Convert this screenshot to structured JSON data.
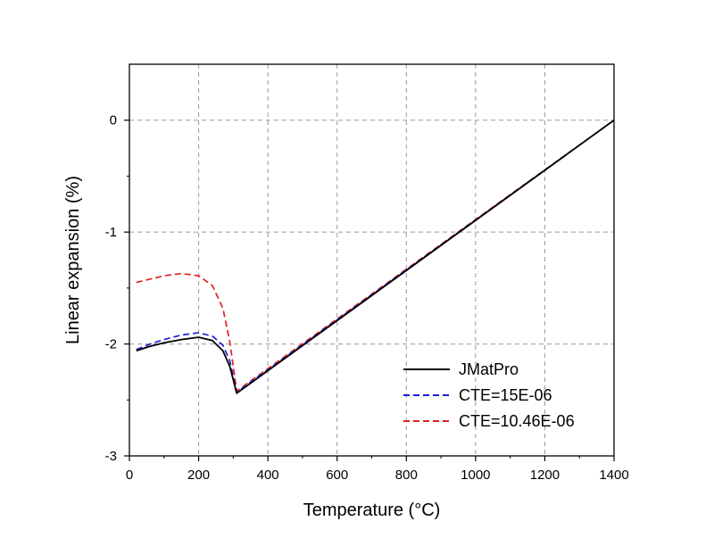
{
  "chart_data": {
    "type": "line",
    "xlabel": "Temperature (°C)",
    "ylabel": "Linear expansion (%)",
    "xlim": [
      0,
      1400
    ],
    "ylim": [
      -3,
      0.5
    ],
    "xticks": [
      0,
      200,
      400,
      600,
      800,
      1000,
      1200,
      1400
    ],
    "yticks": [
      -3,
      -2,
      -1,
      0
    ],
    "ytick_labels": [
      "-3",
      "-2",
      "-1",
      "0"
    ],
    "grid": true,
    "legend_position": "bottom-right",
    "series": [
      {
        "name": "JMatPro",
        "color": "#000000",
        "dash": "solid",
        "x": [
          20,
          60,
          100,
          150,
          200,
          240,
          270,
          290,
          310,
          1400
        ],
        "y": [
          -2.06,
          -2.02,
          -1.99,
          -1.96,
          -1.94,
          -1.97,
          -2.06,
          -2.2,
          -2.44,
          0.0
        ]
      },
      {
        "name": "CTE=15E-06",
        "color": "#1f1fd6",
        "dash": "dashed",
        "x": [
          20,
          60,
          100,
          150,
          200,
          240,
          270,
          290,
          310,
          1400
        ],
        "y": [
          -2.05,
          -2.0,
          -1.96,
          -1.92,
          -1.9,
          -1.93,
          -2.01,
          -2.15,
          -2.43,
          0.0
        ]
      },
      {
        "name": "CTE=10.46E-06",
        "color": "#e0201e",
        "dash": "dashed",
        "x": [
          20,
          60,
          100,
          150,
          200,
          240,
          270,
          290,
          310,
          1400
        ],
        "y": [
          -1.45,
          -1.42,
          -1.39,
          -1.37,
          -1.39,
          -1.48,
          -1.68,
          -1.98,
          -2.42,
          0.0
        ]
      }
    ]
  }
}
